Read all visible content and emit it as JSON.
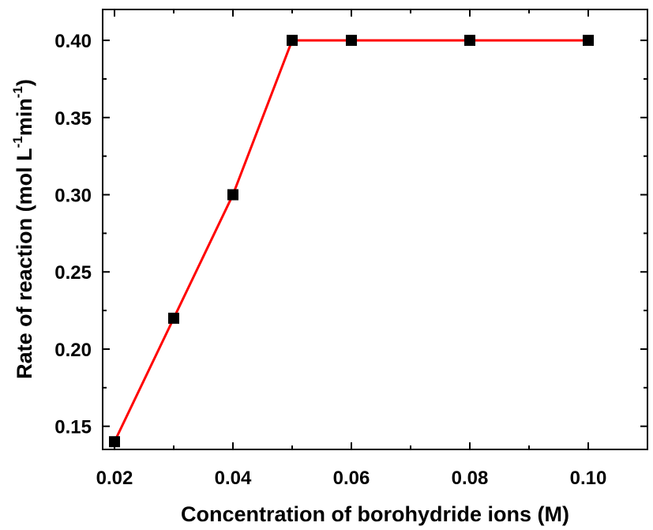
{
  "chart_data": {
    "type": "line",
    "title": "",
    "xlabel": "Concentration of borohydride ions (M)",
    "ylabel": {
      "main": "Rate of reaction (mol L",
      "sup1": "-1",
      "mid": "min",
      "sup2": "-1",
      "end": ")"
    },
    "xlim": [
      0.018,
      0.11
    ],
    "ylim": [
      0.135,
      0.42
    ],
    "xticks": [
      0.02,
      0.04,
      0.06,
      0.08,
      0.1
    ],
    "xtick_labels": [
      "0.02",
      "0.04",
      "0.06",
      "0.08",
      "0.10"
    ],
    "yticks": [
      0.15,
      0.2,
      0.25,
      0.3,
      0.35,
      0.4
    ],
    "ytick_labels": [
      "0.15",
      "0.20",
      "0.25",
      "0.30",
      "0.35",
      "0.40"
    ],
    "grid": false,
    "series": [
      {
        "x": [
          0.02,
          0.03,
          0.04,
          0.05,
          0.06,
          0.08,
          0.1
        ],
        "y": [
          0.14,
          0.22,
          0.3,
          0.4,
          0.4,
          0.4,
          0.4
        ],
        "line_color": "#ff0000",
        "marker": "square",
        "marker_color": "#000000"
      }
    ]
  }
}
